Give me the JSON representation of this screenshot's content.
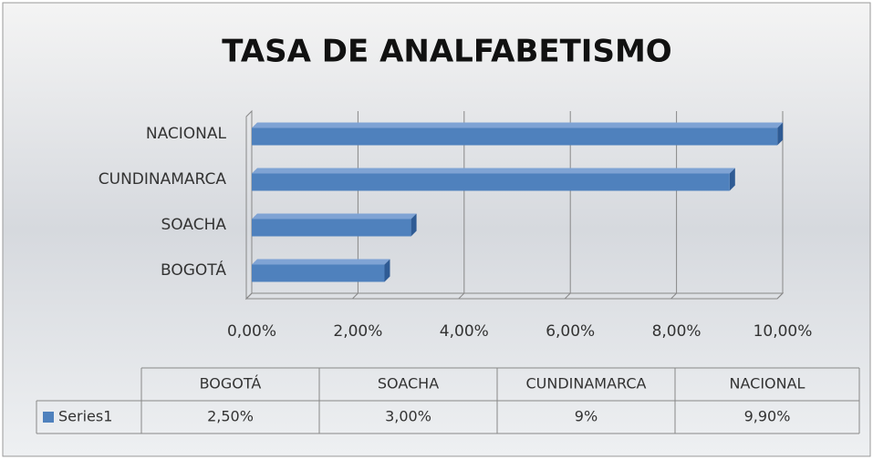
{
  "chart_data": {
    "type": "bar",
    "orientation": "horizontal",
    "title": "TASA DE ANALFABETISMO",
    "categories": [
      "BOGOTÁ",
      "SOACHA",
      "CUNDINAMARCA",
      "NACIONAL"
    ],
    "series": [
      {
        "name": "Series1",
        "color": "#4f81bd",
        "values": [
          2.5,
          3,
          9,
          9.9
        ],
        "value_labels": [
          "2,50%",
          "3,00%",
          "9%",
          "9,90%"
        ]
      }
    ],
    "xlim": [
      0,
      10
    ],
    "xticks": [
      {
        "value": 0,
        "label": "0,00%"
      },
      {
        "value": 2,
        "label": "2,00%"
      },
      {
        "value": 4,
        "label": "4,00%"
      },
      {
        "value": 6,
        "label": "6,00%"
      },
      {
        "value": 8,
        "label": "8,00%"
      },
      {
        "value": 10,
        "label": "10,00%"
      }
    ],
    "grid": true
  }
}
